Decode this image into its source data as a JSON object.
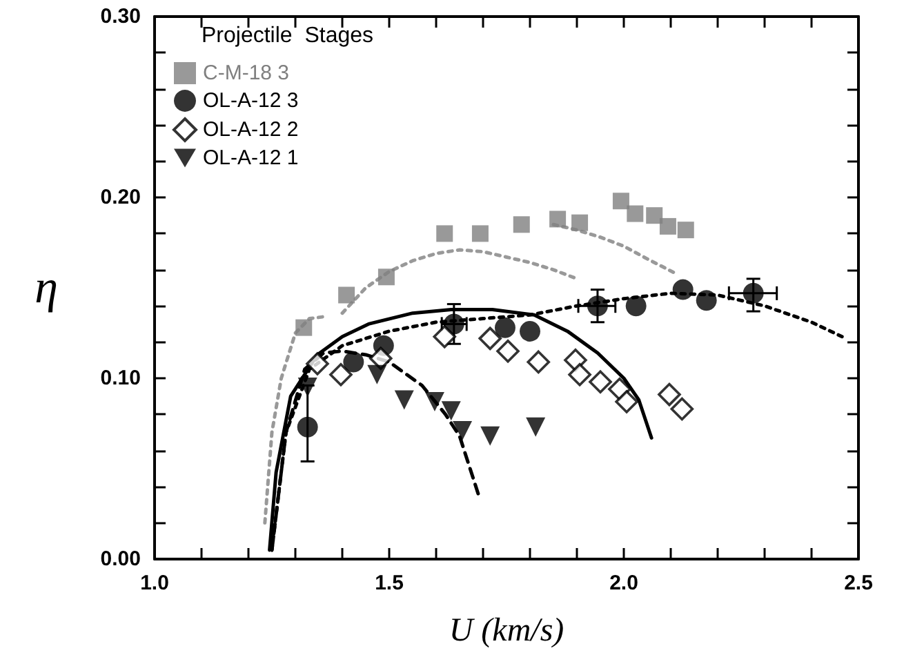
{
  "chart_data": {
    "type": "scatter",
    "xlabel": "U (km/s)",
    "ylabel": "η",
    "legend_title": "Projectile  Stages",
    "legend": "top left",
    "grid": false,
    "xlim": [
      1.0,
      2.5
    ],
    "ylim": [
      0,
      0.3
    ],
    "xticks": [
      {
        "value": 1.0,
        "label": "1.0"
      },
      {
        "value": 1.1,
        "label": null
      },
      {
        "value": 1.2,
        "label": null
      },
      {
        "value": 1.3,
        "label": null
      },
      {
        "value": 1.4,
        "label": null
      },
      {
        "value": 1.5,
        "label": "1.5"
      },
      {
        "value": 1.6,
        "label": null
      },
      {
        "value": 1.7,
        "label": null
      },
      {
        "value": 1.8,
        "label": null
      },
      {
        "value": 1.9,
        "label": null
      },
      {
        "value": 2.0,
        "label": "2.0"
      },
      {
        "value": 2.1,
        "label": null
      },
      {
        "value": 2.2,
        "label": null
      },
      {
        "value": 2.3,
        "label": null
      },
      {
        "value": 2.4,
        "label": null
      },
      {
        "value": 2.5,
        "label": "2.5"
      }
    ],
    "yticks": [
      {
        "value": 0,
        "label": "0.00"
      },
      {
        "value": 0.02,
        "label": null
      },
      {
        "value": 0.04,
        "label": null
      },
      {
        "value": 0.06,
        "label": null
      },
      {
        "value": 0.08,
        "label": null
      },
      {
        "value": 0.1,
        "label": "0.10"
      },
      {
        "value": 0.12,
        "label": null
      },
      {
        "value": 0.14,
        "label": null
      },
      {
        "value": 0.16,
        "label": null
      },
      {
        "value": 0.18,
        "label": null
      },
      {
        "value": 0.2,
        "label": "0.20"
      },
      {
        "value": 0.22,
        "label": null
      },
      {
        "value": 0.24,
        "label": null
      },
      {
        "value": 0.26,
        "label": null
      },
      {
        "value": 0.28,
        "label": null
      },
      {
        "value": 0.3,
        "label": "0.30"
      }
    ],
    "series": [
      {
        "type": "line",
        "color": "#999999",
        "marker": "none",
        "line_style": "dotted",
        "x": [
          1.235,
          1.25,
          1.27,
          1.3,
          1.33,
          1.36
        ],
        "values": [
          0.02,
          0.07,
          0.1,
          0.125,
          0.133,
          0.134
        ]
      },
      {
        "type": "line",
        "color": "#999999",
        "marker": "none",
        "line_style": "dotted",
        "x": [
          1.4,
          1.45,
          1.5,
          1.55,
          1.6,
          1.65,
          1.7,
          1.75,
          1.8,
          1.85,
          1.9
        ],
        "values": [
          0.136,
          0.15,
          0.159,
          0.165,
          0.169,
          0.171,
          0.17,
          0.167,
          0.164,
          0.16,
          0.155
        ]
      },
      {
        "type": "line",
        "color": "#999999",
        "marker": "none",
        "line_style": "dotted",
        "x": [
          1.85,
          1.9,
          1.95,
          2.0,
          2.05,
          2.11
        ],
        "values": [
          0.185,
          0.182,
          0.178,
          0.173,
          0.166,
          0.158
        ]
      },
      {
        "type": "line",
        "color": "#000000",
        "marker": "none",
        "line_style": "solid",
        "x": [
          1.245,
          1.259,
          1.29,
          1.347,
          1.4,
          1.456,
          1.55,
          1.632,
          1.72,
          1.809,
          1.88,
          1.944,
          2.0,
          2.032,
          2.059
        ],
        "values": [
          0.005,
          0.048,
          0.09,
          0.113,
          0.123,
          0.13,
          0.136,
          0.138,
          0.138,
          0.135,
          0.126,
          0.114,
          0.1,
          0.088,
          0.067
        ]
      },
      {
        "type": "line",
        "color": "#000000",
        "marker": "none",
        "line_style": "dotted",
        "x": [
          1.25,
          1.28,
          1.33,
          1.4,
          1.5,
          1.6,
          1.7,
          1.8,
          1.9,
          2.0,
          2.1,
          2.2,
          2.3,
          2.4,
          2.465
        ],
        "values": [
          0.005,
          0.07,
          0.105,
          0.118,
          0.126,
          0.131,
          0.133,
          0.135,
          0.14,
          0.144,
          0.147,
          0.146,
          0.14,
          0.131,
          0.123
        ]
      },
      {
        "type": "line",
        "color": "#000000",
        "marker": "none",
        "line_style": "dashed",
        "x": [
          1.25,
          1.28,
          1.32,
          1.36,
          1.4,
          1.45,
          1.5,
          1.57,
          1.62,
          1.65,
          1.691
        ],
        "values": [
          0.005,
          0.07,
          0.105,
          0.114,
          0.115,
          0.113,
          0.109,
          0.096,
          0.08,
          0.068,
          0.035
        ]
      },
      {
        "name": "C-M-18 3",
        "color": "#7f7f7f",
        "marker": "square",
        "x": [
          1.318,
          1.409,
          1.494,
          1.618,
          1.694,
          1.782,
          1.859,
          1.906,
          1.994,
          2.024,
          2.065,
          2.094,
          2.132
        ],
        "values": [
          0.128,
          0.146,
          0.156,
          0.18,
          0.18,
          0.185,
          0.188,
          0.186,
          0.198,
          0.191,
          0.19,
          0.184,
          0.182
        ]
      },
      {
        "name": "OL-A-12 3",
        "color": "#000000",
        "marker": "circle",
        "x": [
          1.326,
          1.424,
          1.488,
          1.638,
          1.747,
          1.8,
          1.944,
          2.026,
          2.126,
          2.176,
          2.276
        ],
        "values": [
          0.073,
          0.109,
          0.118,
          0.13,
          0.128,
          0.126,
          0.14,
          0.14,
          0.149,
          0.143,
          0.147
        ],
        "errors": [
          [
            0.054,
            0.096
          ],
          null,
          null,
          [
            0.119,
            0.141
          ],
          null,
          null,
          [
            0.131,
            0.149
          ],
          null,
          null,
          null,
          [
            0.137,
            0.155
          ]
        ],
        "xerrors": [
          null,
          null,
          null,
          [
            1.612,
            1.665
          ],
          null,
          null,
          [
            1.903,
            1.982
          ],
          null,
          null,
          null,
          [
            2.224,
            2.326
          ]
        ]
      },
      {
        "name": "OL-A-12 2",
        "color": "#000000",
        "marker": "diamond",
        "x": [
          1.347,
          1.397,
          1.482,
          1.618,
          1.715,
          1.753,
          1.818,
          1.897,
          1.906,
          1.95,
          1.991,
          2.006,
          2.097,
          2.124
        ],
        "values": [
          0.108,
          0.102,
          0.111,
          0.123,
          0.122,
          0.115,
          0.109,
          0.11,
          0.102,
          0.098,
          0.094,
          0.087,
          0.091,
          0.083
        ]
      },
      {
        "name": "OL-A-12 1",
        "color": "#000000",
        "marker": "triangle",
        "x": [
          1.326,
          1.474,
          1.532,
          1.597,
          1.632,
          1.656,
          1.715,
          1.812
        ],
        "values": [
          0.095,
          0.102,
          0.088,
          0.087,
          0.082,
          0.071,
          0.068,
          0.073
        ]
      }
    ]
  }
}
